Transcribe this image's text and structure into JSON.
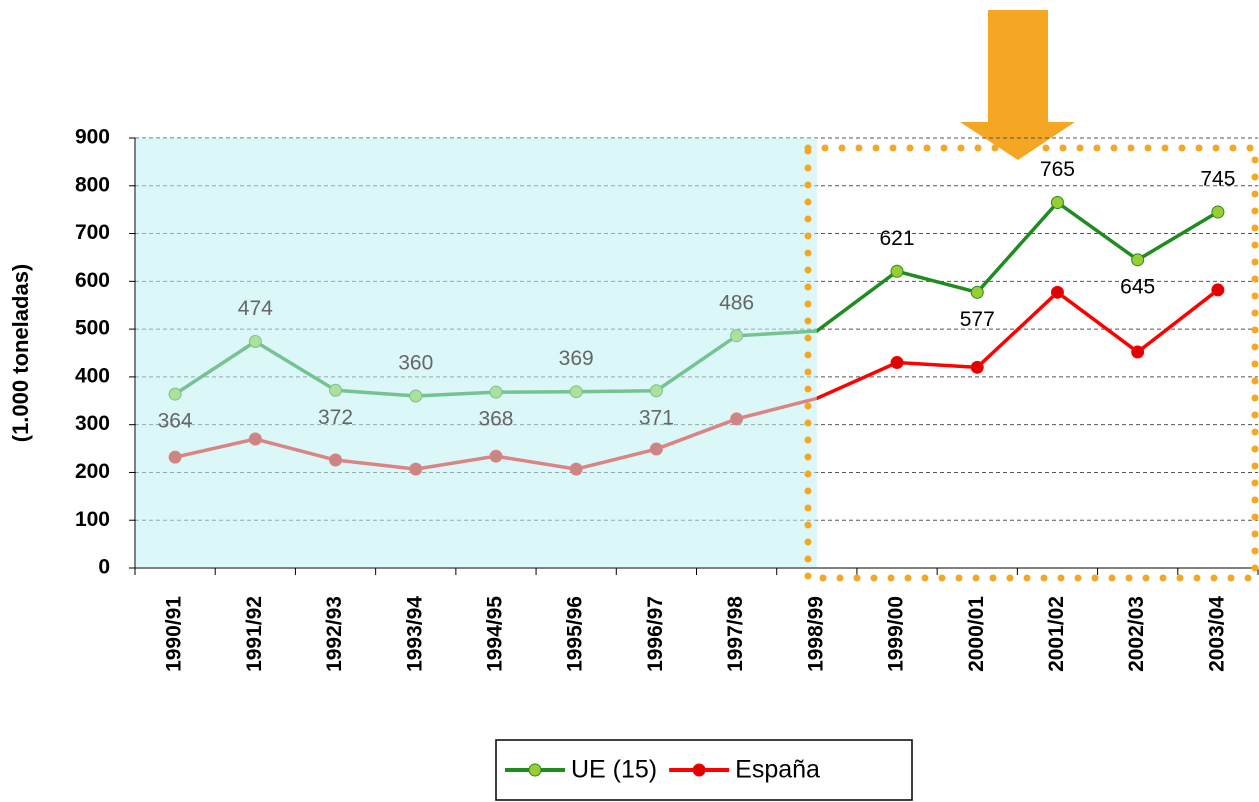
{
  "chart_data": {
    "type": "line",
    "y_label": "(1.000 toneladas)",
    "categories": [
      "1990/91",
      "1991/92",
      "1992/93",
      "1993/94",
      "1994/95",
      "1995/96",
      "1996/97",
      "1997/98",
      "1998/99",
      "1999/00",
      "2000/01",
      "2001/02",
      "2002/03",
      "2003/04"
    ],
    "series": [
      {
        "name": "UE (15)",
        "color": "#1e8c1e",
        "marker_color": "#9acd32",
        "values": [
          364,
          474,
          372,
          360,
          368,
          369,
          371,
          486,
          496,
          621,
          577,
          765,
          645,
          745
        ],
        "value_labels": [
          "364",
          "474",
          "372",
          "360",
          "368",
          "369",
          "371",
          "486",
          null,
          "621",
          "577",
          "765",
          "645",
          "745"
        ]
      },
      {
        "name": "España",
        "color": "#ff0000",
        "marker_color": "#e00000",
        "values": [
          232,
          270,
          226,
          207,
          234,
          207,
          249,
          312,
          355,
          430,
          420,
          577,
          452,
          582
        ]
      }
    ],
    "ylim": [
      0,
      900
    ],
    "yticks": [
      0,
      100,
      200,
      300,
      400,
      500,
      600,
      700,
      800,
      900
    ],
    "grid": true,
    "legend": "bottom"
  }
}
